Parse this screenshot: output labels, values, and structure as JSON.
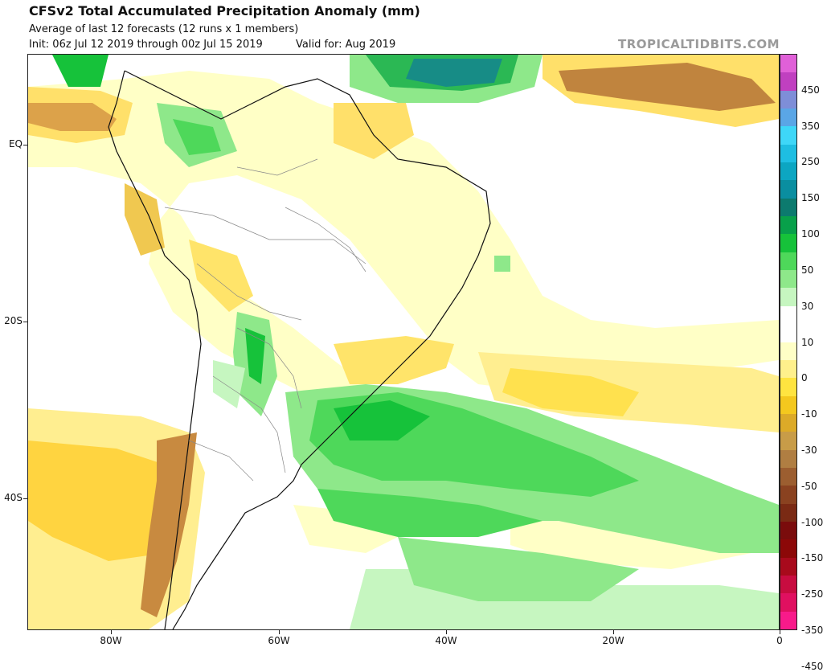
{
  "header": {
    "title": "CFSv2 Total Accumulated Precipitation Anomaly (mm)",
    "subtitle": "Average of last 12 forecasts (12 runs x 1 members)",
    "init": "Init: 06z Jul 12 2019 through 00z Jul 15 2019",
    "valid": "Valid for: Aug 2019",
    "brand": "TROPICALTIDBITS.COM"
  },
  "axes": {
    "lat_labels": [
      "EQ",
      "20S",
      "40S"
    ],
    "lon_labels": [
      "80W",
      "60W",
      "40W",
      "20W",
      "0"
    ]
  },
  "colorbar": {
    "labels": [
      "450",
      "350",
      "250",
      "150",
      "100",
      "50",
      "30",
      "10",
      "0",
      "-10",
      "-30",
      "-50",
      "-100",
      "-150",
      "-250",
      "-350",
      "-450"
    ],
    "colors": [
      "#e060d8",
      "#c040c0",
      "#7e8ed8",
      "#5aa6e6",
      "#3ed7f8",
      "#1ebee2",
      "#0ca6c2",
      "#0a8ea0",
      "#0c7a6e",
      "#08a04a",
      "#16c23a",
      "#4ed85a",
      "#8ee88a",
      "#c6f6c0",
      "#ffffff",
      "#ffffff",
      "#ffffc6",
      "#fff08c",
      "#ffe440",
      "#f4c81e",
      "#dcaa28",
      "#c89c48",
      "#b07e42",
      "#9c5e30",
      "#8a4220",
      "#7a2a14",
      "#7a0c0c",
      "#8c0808",
      "#a80a1c",
      "#c80c40",
      "#e01060",
      "#f81a8a"
    ]
  },
  "map_features": {
    "notes": []
  }
}
